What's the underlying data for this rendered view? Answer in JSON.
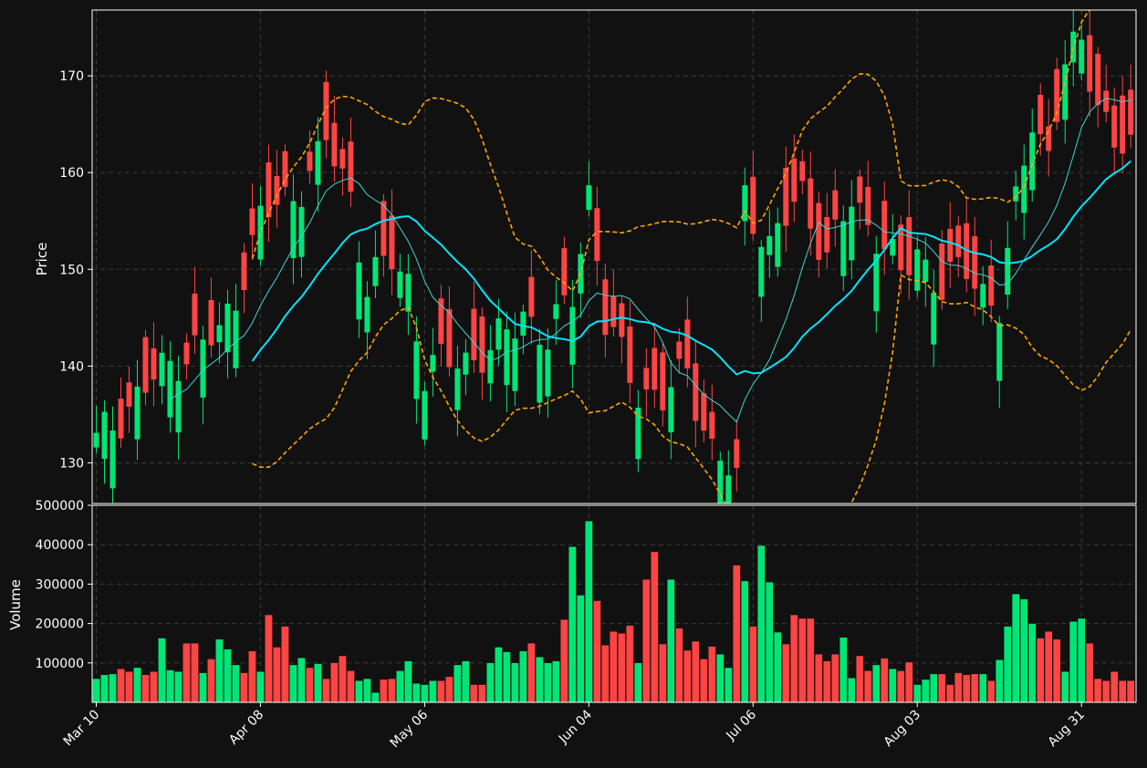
{
  "colors": {
    "background": "#111111",
    "up": "#00e676",
    "down": "#ff4444",
    "grid": "#3a3a3a",
    "ma_fast": "#3fd5d5",
    "ma_slow": "#00e5ff",
    "bollinger": "#ffa500",
    "axes": "#ffffff"
  },
  "chart_data": [
    {
      "type": "candlestick",
      "ylabel": "Price",
      "xlabel": "",
      "ylim": [
        125.8,
        176.8
      ],
      "yticks": [
        130,
        140,
        150,
        160,
        170
      ],
      "grid": true,
      "x_tick_labels": [
        "Mar 10",
        "Apr 08",
        "May 06",
        "Jun 04",
        "Jul 06",
        "Aug 03",
        "Aug 31"
      ],
      "x_tick_index": [
        0,
        20,
        40,
        60,
        80,
        100,
        120
      ],
      "overlays": [
        "moving average (fast)",
        "moving average (slow)",
        "Bollinger bands"
      ]
    },
    {
      "type": "bar",
      "ylabel": "Volume",
      "xlabel": "",
      "ylim": [
        0,
        500000
      ],
      "yticks": [
        100000,
        200000,
        300000,
        400000,
        500000
      ],
      "ytick_labels": [
        "100000",
        "200000",
        "300000",
        "400000",
        "500000"
      ],
      "grid": true,
      "values": [
        60000,
        70000,
        72000,
        85000,
        78000,
        88000,
        70000,
        78000,
        163000,
        82000,
        78000,
        150000,
        150000,
        75000,
        110000,
        160000,
        135000,
        95000,
        75000,
        130000,
        78000,
        222000,
        140000,
        193000,
        95000,
        113000,
        88000,
        98000,
        60000,
        100000,
        118000,
        80000,
        55000,
        60000,
        25000,
        58000,
        60000,
        80000,
        105000,
        48000,
        45000,
        55000,
        55000,
        65000,
        95000,
        105000,
        45000,
        45000,
        100000,
        140000,
        128000,
        100000,
        130000,
        150000,
        115000,
        100000,
        105000,
        210000,
        395000,
        272000,
        460000,
        258000,
        145000,
        180000,
        175000,
        195000,
        100000,
        312000,
        382000,
        148000,
        312000,
        188000,
        132000,
        155000,
        110000,
        142000,
        122000,
        88000,
        348000,
        308000,
        193000,
        398000,
        305000,
        178000,
        148000,
        222000,
        213000,
        213000,
        122000,
        105000,
        122000,
        165000,
        62000,
        118000,
        80000,
        95000,
        112000,
        85000,
        80000,
        102000,
        45000,
        58000,
        72000,
        72000,
        45000,
        75000,
        70000,
        72000,
        72000,
        55000,
        108000,
        193000,
        275000,
        262000,
        200000,
        163000,
        180000,
        160000,
        78000,
        205000,
        213000,
        150000,
        60000,
        55000,
        78000,
        55000,
        55000
      ]
    }
  ]
}
